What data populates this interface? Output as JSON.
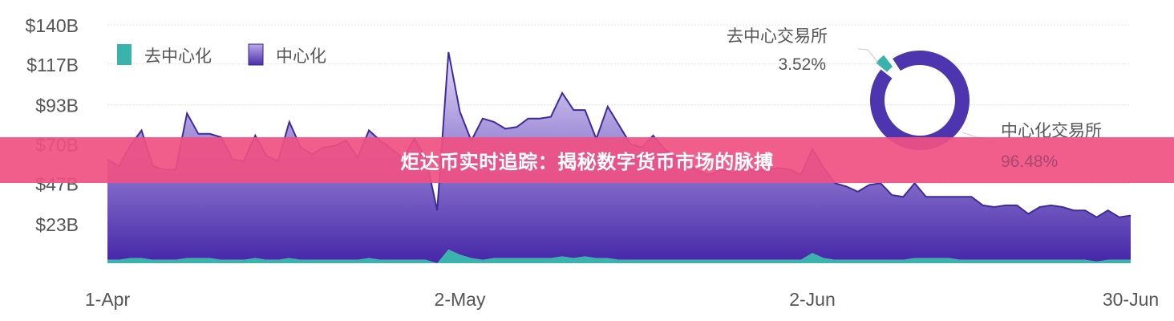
{
  "chart_data": [
    {
      "type": "area",
      "stacked": true,
      "x_tick_labels": [
        "1-Apr",
        "2-May",
        "2-Jun",
        "30-Jun"
      ],
      "x_range": [
        "1-Apr",
        "30-Jun"
      ],
      "y_tick_labels": [
        "$23B",
        "$47B",
        "$70B",
        "$93B",
        "$117B",
        "$140B"
      ],
      "y_ticks": [
        23,
        47,
        70,
        93,
        117,
        140
      ],
      "ylim": [
        0,
        140
      ],
      "y_unit": "USD billions",
      "grid": true,
      "legend_placement": "top-left",
      "series": [
        {
          "name": "去中心化",
          "color": "#3bb3ad",
          "values": [
            2,
            2,
            3,
            3,
            2,
            2,
            2,
            3,
            3,
            3,
            2,
            2,
            2,
            3,
            2,
            2,
            3,
            2,
            2,
            2,
            2,
            2,
            2,
            3,
            2,
            2,
            2,
            2,
            2,
            0,
            8,
            5,
            3,
            2,
            3,
            3,
            3,
            3,
            3,
            3,
            4,
            3,
            4,
            3,
            3,
            2,
            2,
            2,
            2,
            2,
            2,
            2,
            2,
            2,
            2,
            2,
            2,
            2,
            2,
            2,
            2,
            2,
            6,
            3,
            2,
            2,
            2,
            2,
            2,
            2,
            2,
            3,
            3,
            3,
            3,
            2,
            2,
            2,
            2,
            2,
            2,
            2,
            2,
            2,
            2,
            2,
            2,
            1,
            2,
            2,
            2
          ]
        },
        {
          "name": "中心化",
          "color": "#4a2fa8",
          "values": [
            59,
            55,
            66,
            75,
            55,
            53,
            53,
            85,
            73,
            73,
            72,
            59,
            58,
            72,
            61,
            58,
            80,
            66,
            62,
            66,
            67,
            70,
            60,
            75,
            70,
            65,
            60,
            71,
            60,
            31,
            116,
            84,
            69,
            83,
            80,
            76,
            77,
            82,
            82,
            83,
            96,
            87,
            86,
            70,
            89,
            79,
            68,
            66,
            73,
            65,
            60,
            56,
            52,
            50,
            53,
            51,
            54,
            52,
            53,
            54,
            53,
            50,
            61,
            53,
            45,
            43,
            40,
            44,
            45,
            38,
            37,
            44,
            36,
            36,
            36,
            37,
            37,
            32,
            31,
            32,
            32,
            27,
            31,
            32,
            31,
            29,
            29,
            26,
            29,
            25,
            26
          ]
        }
      ]
    },
    {
      "type": "pie",
      "donut": true,
      "slices": [
        {
          "label": "去中心交易所",
          "percent_label": "3.52%",
          "value": 3.52,
          "color": "#3bb3ad"
        },
        {
          "label": "中心化交易所",
          "percent_label": "96.48%",
          "value": 96.48,
          "color": "#4e35b0"
        }
      ]
    }
  ],
  "banner": {
    "title": "炬达币实时追踪：揭秘数字货币市场的脉搏",
    "color": "#f05082"
  }
}
